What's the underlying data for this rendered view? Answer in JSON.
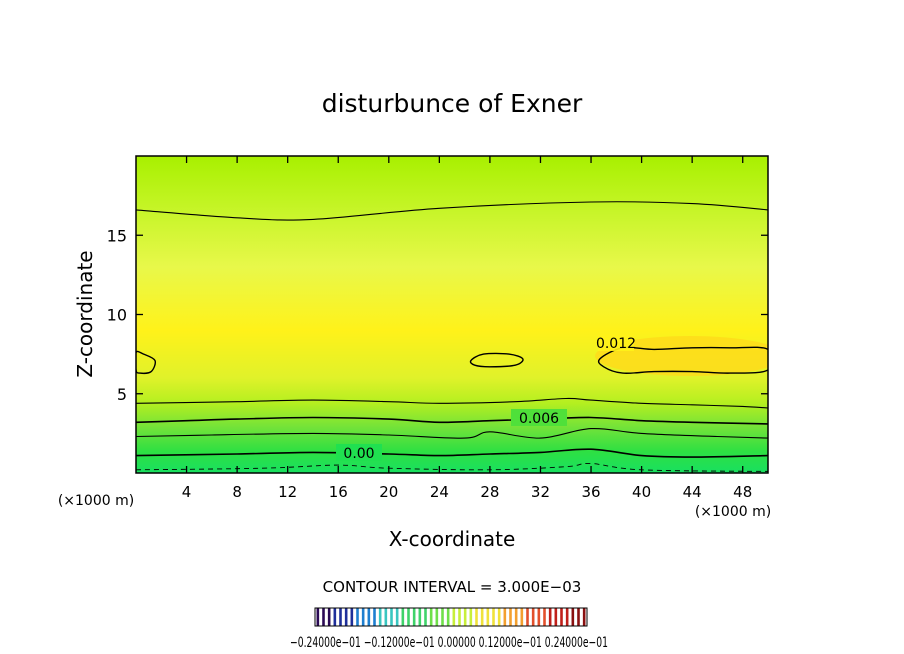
{
  "chart_data": {
    "type": "contour",
    "title": "disturbunce of Exner",
    "xlabel": "X-coordinate",
    "ylabel": "Z-coordinate",
    "xunit": "(×1000 m)",
    "yunit": "(×1000 m)",
    "xlim": [
      0,
      50
    ],
    "ylim": [
      0,
      20
    ],
    "xticks": [
      4,
      8,
      12,
      16,
      20,
      24,
      28,
      32,
      36,
      40,
      44,
      48
    ],
    "yticks": [
      5,
      10,
      15
    ],
    "contour_interval_text": "CONTOUR INTERVAL = 3.000E−03",
    "contour_labels": [
      {
        "text": "0.012",
        "x": 39.0,
        "z": 8.2
      },
      {
        "text": "0.006",
        "x": 32.0,
        "z": 3.3
      },
      {
        "text": "0.00",
        "x": 17.5,
        "z": 1.2
      }
    ],
    "contour_lines": [
      {
        "level": 0.015,
        "x": [
          0,
          8,
          14,
          24,
          36,
          44,
          50
        ],
        "z": [
          16.6,
          16.1,
          16.0,
          16.7,
          17.1,
          17.0,
          16.6
        ]
      },
      {
        "level": 0.009,
        "x": [
          0,
          8,
          14,
          20,
          24,
          30,
          34,
          36,
          40,
          44,
          48,
          50
        ],
        "z": [
          4.4,
          4.5,
          4.6,
          4.5,
          4.4,
          4.5,
          4.7,
          4.6,
          4.4,
          4.3,
          4.2,
          4.1
        ]
      },
      {
        "level": 0.006,
        "x": [
          0,
          4,
          8,
          14,
          20,
          24,
          28,
          32,
          36,
          40,
          44,
          50
        ],
        "z": [
          3.2,
          3.3,
          3.4,
          3.5,
          3.4,
          3.2,
          3.3,
          3.4,
          3.5,
          3.3,
          3.2,
          3.1
        ]
      },
      {
        "level": 0.003,
        "x": [
          0,
          6,
          14,
          20,
          26,
          28,
          32,
          36,
          40,
          46,
          50
        ],
        "z": [
          2.3,
          2.4,
          2.5,
          2.4,
          2.2,
          2.6,
          2.2,
          2.8,
          2.5,
          2.3,
          2.2
        ]
      },
      {
        "level": 0.0,
        "x": [
          0,
          8,
          14,
          20,
          24,
          28,
          32,
          36,
          40,
          44,
          50
        ],
        "z": [
          1.1,
          1.2,
          1.3,
          1.2,
          1.1,
          1.2,
          1.3,
          1.5,
          1.1,
          1.0,
          1.1
        ]
      }
    ],
    "closed_contours": [
      {
        "level": 0.012,
        "x": [
          0,
          0.6,
          1.5,
          1.2,
          0.3,
          0
        ],
        "z": [
          7.6,
          7.5,
          7.1,
          6.4,
          6.3,
          6.5
        ]
      },
      {
        "level": 0.012,
        "x": [
          26.5,
          27.5,
          29.5,
          30.6,
          30.0,
          28.0,
          26.8
        ],
        "z": [
          7.1,
          7.5,
          7.5,
          7.2,
          6.8,
          6.7,
          6.8
        ]
      },
      {
        "level": 0.012,
        "x": [
          50,
          47,
          44,
          41,
          38.5,
          36.7,
          37.0,
          38.5,
          41,
          44,
          47,
          50
        ],
        "z": [
          7.8,
          7.9,
          7.9,
          7.8,
          7.9,
          7.2,
          6.7,
          6.3,
          6.4,
          6.4,
          6.3,
          6.5
        ]
      }
    ],
    "dashed_lines": [
      {
        "x": [
          0,
          10,
          16,
          20,
          28,
          34,
          36,
          40,
          50
        ],
        "z": [
          0.2,
          0.3,
          0.5,
          0.3,
          0.2,
          0.4,
          0.6,
          0.2,
          0.1
        ]
      }
    ],
    "shading_note": "filled contours, yellow at mid-levels grading to green near bottom and top",
    "colorbar": {
      "labels_text": "−0.24000e−01  −0.12000e−01  0.00000  0.12000e−01  0.24000e−01",
      "range": [
        -0.024,
        0.024
      ],
      "colors": [
        "#2a0a55",
        "#1f2f9a",
        "#1e7fd0",
        "#39c6c0",
        "#3fd36a",
        "#6fe04a",
        "#c8ef3a",
        "#f0e23a",
        "#f3a02f",
        "#e3502b",
        "#c0201a",
        "#8a1010"
      ]
    }
  }
}
